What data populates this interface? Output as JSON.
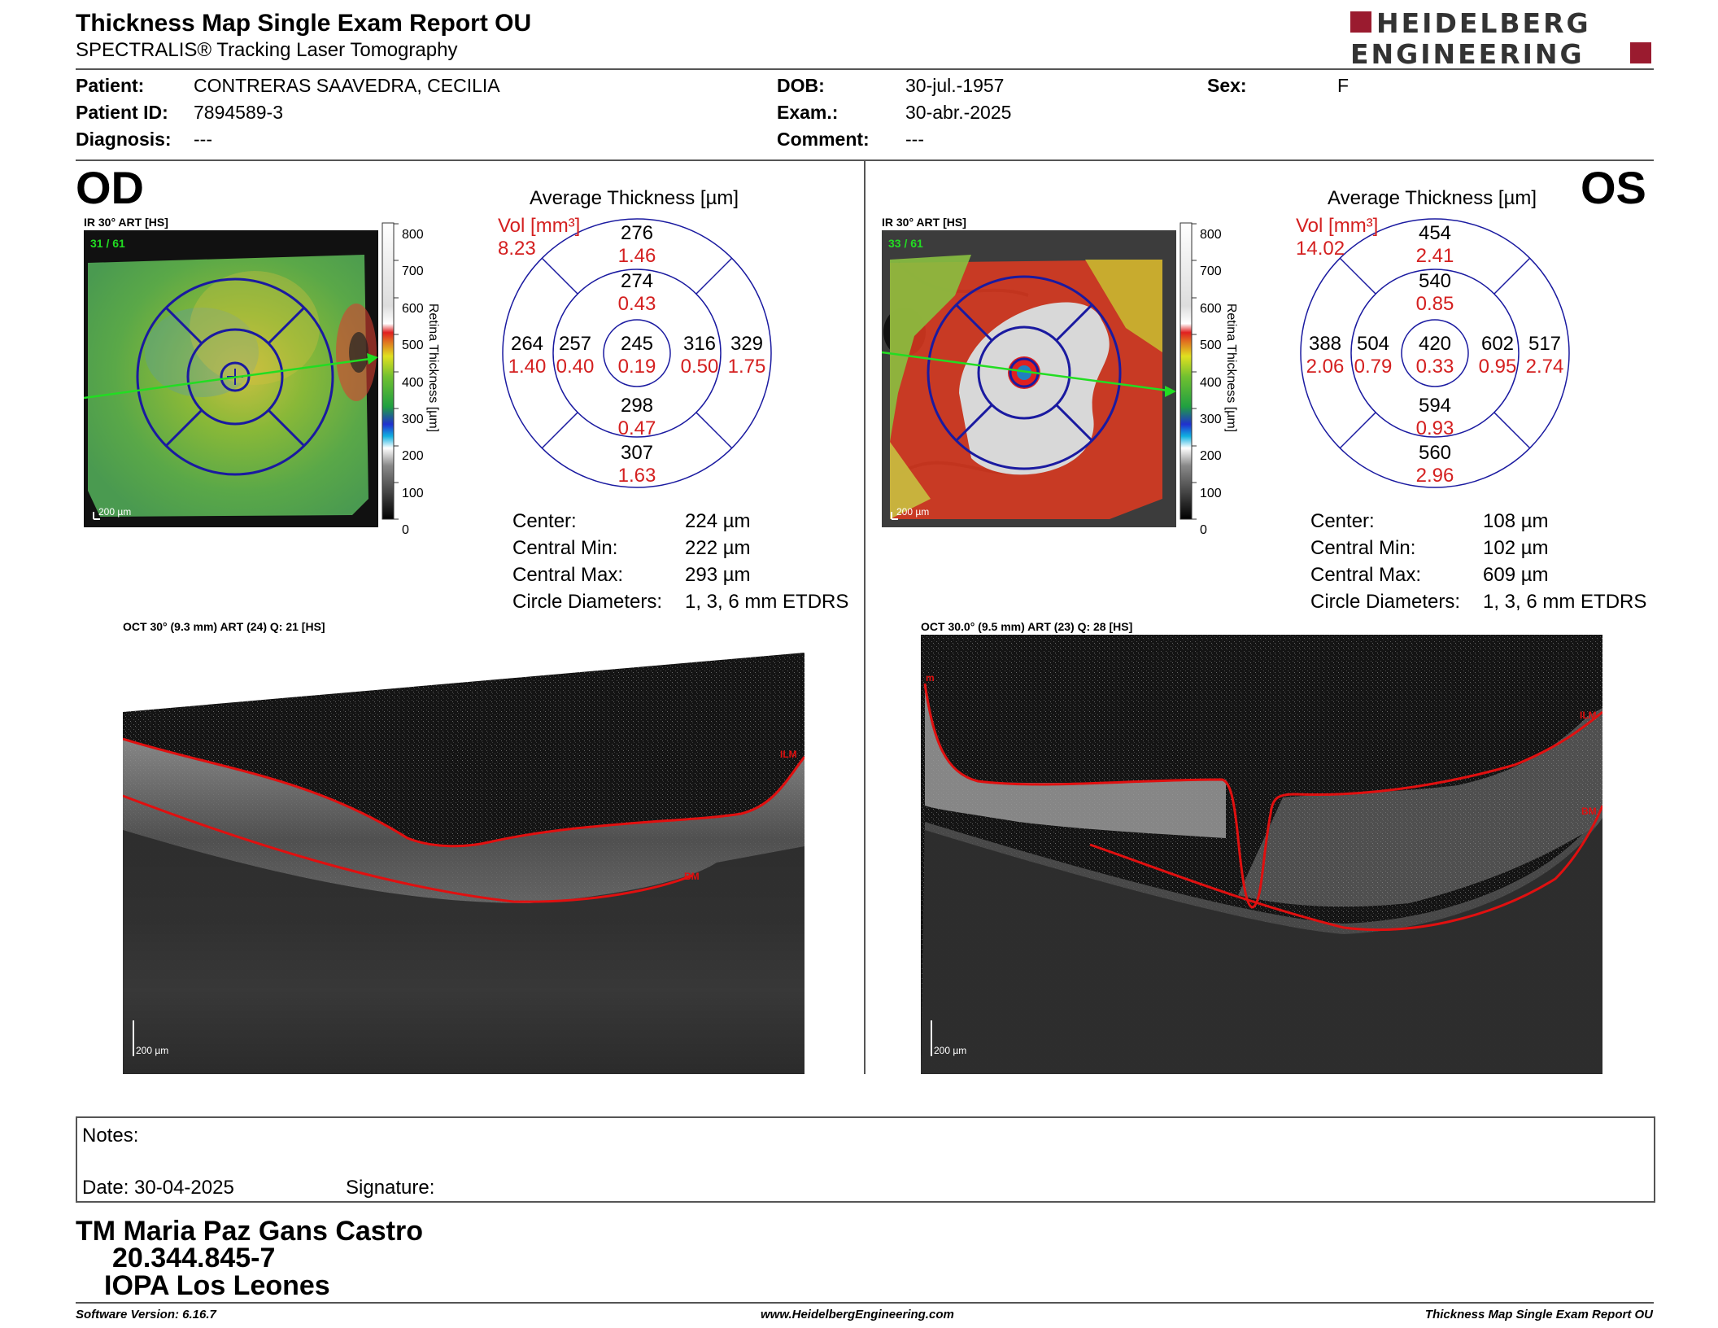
{
  "header": {
    "title": "Thickness Map Single Exam Report OU",
    "subtitle": "SPECTRALIS® Tracking Laser Tomography",
    "logo_line1": "HEIDELBERG",
    "logo_line2": "ENGINEERING"
  },
  "patient": {
    "patient_label": "Patient:",
    "patient_value": "CONTRERAS SAAVEDRA, CECILIA",
    "id_label": "Patient ID:",
    "id_value": "7894589-3",
    "diagnosis_label": "Diagnosis:",
    "diagnosis_value": "---",
    "dob_label": "DOB:",
    "dob_value": "30-jul.-1957",
    "exam_label": "Exam.:",
    "exam_value": "30-abr.-2025",
    "comment_label": "Comment:",
    "comment_value": "---",
    "sex_label": "Sex:",
    "sex_value": "F"
  },
  "od": {
    "eye_label": "OD",
    "ir_label": "IR 30° ART [HS]",
    "frame_label": "31 / 61",
    "scale_label": "200 µm",
    "avg_title": "Average Thickness [µm]",
    "vol_label": "Vol [mm³]",
    "total_vol": "8.23",
    "sectors": {
      "superior_outer": {
        "t": "276",
        "v": "1.46"
      },
      "superior_inner": {
        "t": "274",
        "v": "0.43"
      },
      "center": {
        "t": "245",
        "v": "0.19"
      },
      "nasal_outer": {
        "t": "264",
        "v": "1.40"
      },
      "nasal_inner": {
        "t": "257",
        "v": "0.40"
      },
      "temporal_inner": {
        "t": "316",
        "v": "0.50"
      },
      "temporal_outer": {
        "t": "329",
        "v": "1.75"
      },
      "inferior_inner": {
        "t": "298",
        "v": "0.47"
      },
      "inferior_outer": {
        "t": "307",
        "v": "1.63"
      }
    },
    "stats": {
      "center_label": "Center:",
      "center_value": "224 µm",
      "min_label": "Central Min:",
      "min_value": "222 µm",
      "max_label": "Central Max:",
      "max_value": "293 µm",
      "diam_label": "Circle Diameters:",
      "diam_value": "1, 3, 6 mm ETDRS"
    },
    "oct_label": "OCT 30° (9.3 mm) ART (24) Q: 21 [HS]",
    "oct_scale": "200 µm",
    "ilm": "ILM",
    "bm": "BM"
  },
  "os": {
    "eye_label": "OS",
    "ir_label": "IR 30° ART [HS]",
    "frame_label": "33 / 61",
    "scale_label": "200 µm",
    "avg_title": "Average Thickness [µm]",
    "vol_label": "Vol [mm³]",
    "total_vol": "14.02",
    "sectors": {
      "superior_outer": {
        "t": "454",
        "v": "2.41"
      },
      "superior_inner": {
        "t": "540",
        "v": "0.85"
      },
      "center": {
        "t": "420",
        "v": "0.33"
      },
      "nasal_outer": {
        "t": "388",
        "v": "2.06"
      },
      "nasal_inner": {
        "t": "504",
        "v": "0.79"
      },
      "temporal_inner": {
        "t": "602",
        "v": "0.95"
      },
      "temporal_outer": {
        "t": "517",
        "v": "2.74"
      },
      "inferior_inner": {
        "t": "594",
        "v": "0.93"
      },
      "inferior_outer": {
        "t": "560",
        "v": "2.96"
      }
    },
    "stats": {
      "center_label": "Center:",
      "center_value": "108 µm",
      "min_label": "Central Min:",
      "min_value": "102 µm",
      "max_label": "Central Max:",
      "max_value": "609 µm",
      "diam_label": "Circle Diameters:",
      "diam_value": "1, 3, 6 mm ETDRS"
    },
    "oct_label": "OCT 30.0° (9.5 mm) ART (23) Q: 28 [HS]",
    "oct_scale": "200 µm",
    "ilm": "ILM",
    "bm": "BM"
  },
  "colorbar": {
    "ticks": [
      "800",
      "700",
      "600",
      "500",
      "400",
      "300",
      "200",
      "100",
      "0"
    ],
    "axis_label": "Retina Thickness [µm]"
  },
  "notes": {
    "notes_label": "Notes:",
    "date_label": "Date: 30-04-2025",
    "signature_label": "Signature:"
  },
  "signer": {
    "name": "TM Maria Paz Gans Castro",
    "rut": "20.344.845-7",
    "institution": "IOPA Los Leones"
  },
  "footer": {
    "software": "Software Version: 6.16.7",
    "url": "www.HeidelbergEngineering.com",
    "report": "Thickness Map Single Exam Report OU"
  },
  "colors": {
    "volume_red": "#d42020",
    "grid_blue": "#1a1aa0",
    "segmentation_red": "#e01010",
    "logo_red": "#9a1b2f",
    "scan_line_green": "#22dd22"
  }
}
